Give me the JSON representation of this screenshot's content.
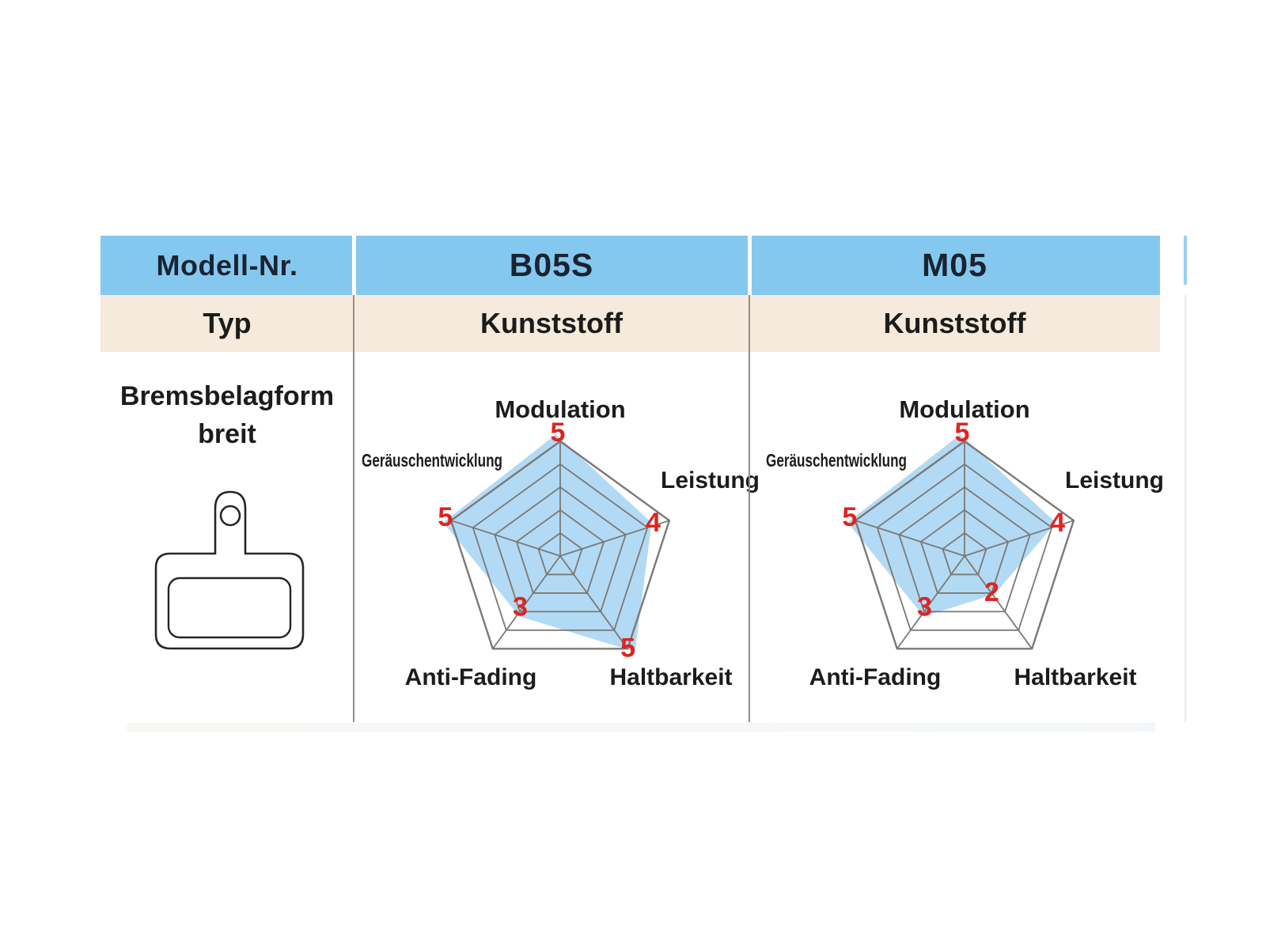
{
  "table": {
    "header_row": {
      "label": "Modell-Nr.",
      "models": [
        "B05S",
        "M05"
      ]
    },
    "type_row": {
      "label": "Typ",
      "values": [
        "Kunststoff",
        "Kunststoff"
      ]
    },
    "shape_row": {
      "label_line1": "Bremsbelagform",
      "label_line2": "breit",
      "icon": "brake-pad-outline-icon"
    }
  },
  "colors": {
    "header_bg": "#85C8EF",
    "type_row_bg": "#F5EADC",
    "radar_grid": "#7B7975",
    "radar_fill": "#B2DAF5",
    "value_red": "#DF2420",
    "label_text": "#1C1C1A",
    "header_text": "#1A2330"
  },
  "chart_data": [
    {
      "type": "radar",
      "title": "B05S",
      "categories": [
        "Modulation",
        "Leistung",
        "Haltbarkeit",
        "Anti-Fading",
        "Geräuschentwicklung"
      ],
      "values": [
        5,
        4,
        5,
        3,
        5
      ],
      "max": 5,
      "rings": 5,
      "axis_order": "clockwise-from-top",
      "grid": "pentagon",
      "value_labels_shown": true
    },
    {
      "type": "radar",
      "title": "M05",
      "categories": [
        "Modulation",
        "Leistung",
        "Haltbarkeit",
        "Anti-Fading",
        "Geräuschentwicklung"
      ],
      "values": [
        5,
        4,
        2,
        3,
        5
      ],
      "max": 5,
      "rings": 5,
      "axis_order": "clockwise-from-top",
      "grid": "pentagon",
      "value_labels_shown": true
    }
  ]
}
